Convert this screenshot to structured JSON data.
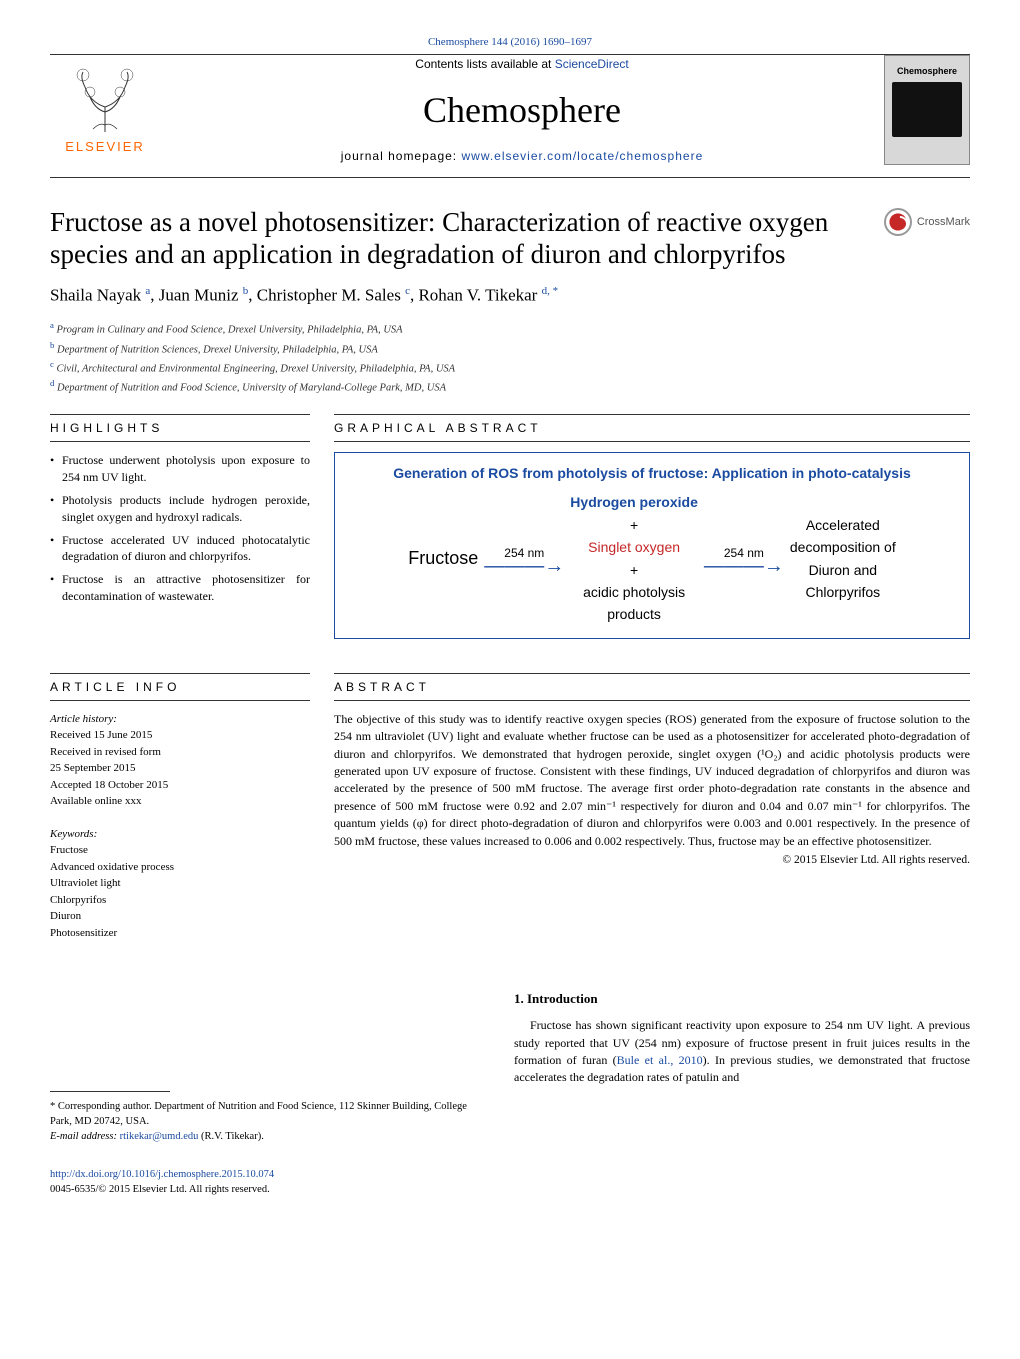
{
  "journal_ref": {
    "text": "Chemosphere 144 (2016) 1690–1697",
    "link_color": "#1a4ba0"
  },
  "masthead": {
    "contents_prefix": "Contents lists available at ",
    "contents_link": "ScienceDirect",
    "journal": "Chemosphere",
    "homepage_prefix": "journal homepage: ",
    "homepage_link": "www.elsevier.com/locate/chemosphere",
    "publisher_name": "ELSEVIER",
    "cover_title": "Chemosphere"
  },
  "crossmark_label": "CrossMark",
  "title": "Fructose as a novel photosensitizer: Characterization of reactive oxygen species and an application in degradation of diuron and chlorpyrifos",
  "authors_html": "Shaila Nayak <sup>a</sup>, Juan Muniz <sup>b</sup>, Christopher M. Sales <sup>c</sup>, Rohan V. Tikekar <sup>d, *</sup>",
  "affiliations": [
    {
      "sup": "a",
      "text": "Program in Culinary and Food Science, Drexel University, Philadelphia, PA, USA"
    },
    {
      "sup": "b",
      "text": "Department of Nutrition Sciences, Drexel University, Philadelphia, PA, USA"
    },
    {
      "sup": "c",
      "text": "Civil, Architectural and Environmental Engineering, Drexel University, Philadelphia, PA, USA"
    },
    {
      "sup": "d",
      "text": "Department of Nutrition and Food Science, University of Maryland-College Park, MD, USA"
    }
  ],
  "sections": {
    "highlights": "HIGHLIGHTS",
    "graphical_abstract": "GRAPHICAL ABSTRACT",
    "article_info": "ARTICLE INFO",
    "abstract": "ABSTRACT"
  },
  "highlights": [
    "Fructose underwent photolysis upon exposure to 254 nm UV light.",
    "Photolysis products include hydrogen peroxide, singlet oxygen and hydroxyl radicals.",
    "Fructose accelerated UV induced photocatalytic degradation of diuron and chlorpyrifos.",
    "Fructose is an attractive photosensitizer for decontamination of wastewater."
  ],
  "graphical_abstract": {
    "title": "Generation of ROS from photolysis of fructose: Application in photo-catalysis",
    "left": "Fructose",
    "wavelength": "254 nm",
    "center_top": "Hydrogen peroxide",
    "center_mid": "Singlet oxygen",
    "center_bottom1": "acidic photolysis",
    "center_bottom2": "products",
    "plus": "+",
    "right1": "Accelerated",
    "right2": "decomposition of",
    "right3": "Diuron and",
    "right4": "Chlorpyrifos",
    "title_color": "#1a4ba0",
    "hp_color": "#1a4ba0",
    "so_color": "#c62828",
    "arrow_color": "#1a4ba0",
    "border_color": "#1a4ba0"
  },
  "article_info": {
    "history_heading": "Article history:",
    "lines": [
      "Received 15 June 2015",
      "Received in revised form",
      "25 September 2015",
      "Accepted 18 October 2015",
      "Available online xxx"
    ],
    "keywords_heading": "Keywords:",
    "keywords": [
      "Fructose",
      "Advanced oxidative process",
      "Ultraviolet light",
      "Chlorpyrifos",
      "Diuron",
      "Photosensitizer"
    ]
  },
  "abstract": "The objective of this study was to identify reactive oxygen species (ROS) generated from the exposure of fructose solution to the 254 nm ultraviolet (UV) light and evaluate whether fructose can be used as a photosensitizer for accelerated photo-degradation of diuron and chlorpyrifos. We demonstrated that hydrogen peroxide, singlet oxygen (¹O₂) and acidic photolysis products were generated upon UV exposure of fructose. Consistent with these findings, UV induced degradation of chlorpyrifos and diuron was accelerated by the presence of 500 mM fructose. The average first order photo-degradation rate constants in the absence and presence of 500 mM fructose were 0.92 and 2.07 min⁻¹ respectively for diuron and 0.04 and 0.07 min⁻¹ for chlorpyrifos. The quantum yields (φ) for direct photo-degradation of diuron and chlorpyrifos were 0.003 and 0.001 respectively. In the presence of 500 mM fructose, these values increased to 0.006 and 0.002 respectively. Thus, fructose may be an effective photosensitizer.",
  "copyright": "© 2015 Elsevier Ltd. All rights reserved.",
  "intro": {
    "heading": "1. Introduction",
    "para": "Fructose has shown significant reactivity upon exposure to 254 nm UV light. A previous study reported that UV (254 nm) exposure of fructose present in fruit juices results in the formation of furan (Bule et al., 2010). In previous studies, we demonstrated that fructose accelerates the degradation rates of patulin and"
  },
  "footnote": {
    "corr": "* Corresponding author. Department of Nutrition and Food Science, 112 Skinner Building, College Park, MD 20742, USA.",
    "email_label": "E-mail address: ",
    "email": "rtikekar@umd.edu",
    "email_suffix": " (R.V. Tikekar)."
  },
  "footer": {
    "doi": "http://dx.doi.org/10.1016/j.chemosphere.2015.10.074",
    "issn": "0045-6535/© 2015 Elsevier Ltd. All rights reserved."
  },
  "colors": {
    "link": "#1a4ba0",
    "elsevier_orange": "#ff6600",
    "text": "#000000",
    "rule": "#333333"
  },
  "typography": {
    "title_fontsize": 27,
    "journal_fontsize": 36,
    "authors_fontsize": 17,
    "body_fontsize": 12,
    "small_fontsize": 11
  }
}
